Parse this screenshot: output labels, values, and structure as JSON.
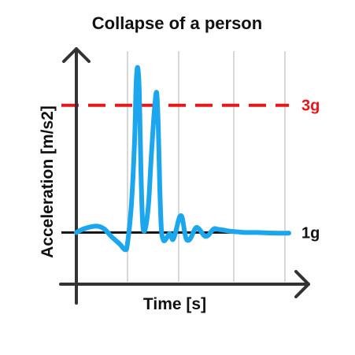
{
  "chart_data": {
    "type": "line",
    "title": "Collapse of a person",
    "xlabel": "Time [s]",
    "ylabel": "Acceleration [m/s2]",
    "ylim": [
      0.25,
      3.85
    ],
    "xlim": [
      0,
      270
    ],
    "grid": true,
    "grid_x": [
      65,
      130,
      200,
      265
    ],
    "reference_lines": [
      {
        "label": "3g",
        "value": 3,
        "color": "#e8151b",
        "style": "dashed"
      },
      {
        "label": "1g",
        "value": 1,
        "color": "#111111",
        "style": "solid"
      }
    ],
    "series": [
      {
        "color": "#1ba6ee",
        "x": [
          0,
          10,
          25,
          35,
          45,
          55,
          62,
          65,
          70,
          74,
          76,
          78,
          80,
          82,
          84,
          86,
          89,
          92,
          95,
          99,
          102,
          104,
          106,
          108,
          110,
          112,
          115,
          118,
          120,
          122,
          124,
          127,
          131,
          134,
          136,
          138,
          140,
          143,
          146,
          150,
          153,
          157,
          161,
          164,
          168,
          171,
          175,
          180,
          186,
          195,
          205,
          215,
          230,
          250,
          270
        ],
        "y": [
          1.0,
          1.06,
          1.1,
          1.06,
          0.93,
          0.82,
          0.73,
          0.83,
          1.45,
          2.45,
          3.35,
          3.59,
          3.2,
          2.0,
          1.2,
          1.02,
          1.15,
          1.5,
          2.15,
          2.9,
          3.2,
          2.7,
          1.7,
          1.05,
          0.9,
          0.87,
          0.92,
          0.98,
          0.96,
          0.89,
          0.92,
          1.05,
          1.24,
          1.25,
          1.13,
          0.98,
          0.89,
          0.88,
          0.93,
          1.04,
          1.08,
          1.04,
          0.97,
          0.94,
          0.96,
          1.01,
          1.06,
          1.05,
          1.04,
          1.02,
          1.01,
          1.0,
          1.0,
          0.99,
          0.99
        ]
      }
    ]
  }
}
